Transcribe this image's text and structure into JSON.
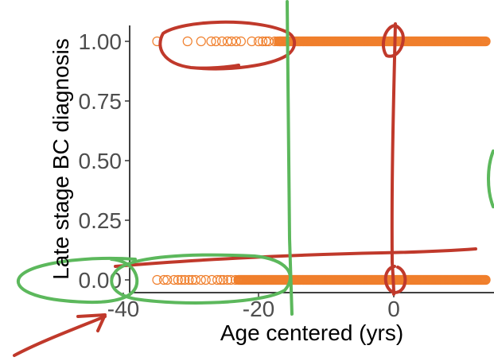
{
  "chart_data": {
    "type": "scatter",
    "title": "",
    "xlabel": "Age centered (yrs)",
    "ylabel": "Late stage BC diagnosis",
    "xlim": [
      -42,
      14
    ],
    "ylim": [
      -0.05,
      1.05
    ],
    "x_ticks": [
      {
        "value": -40,
        "label": "-40"
      },
      {
        "value": -20,
        "label": "-20"
      },
      {
        "value": 0,
        "label": "0"
      }
    ],
    "y_ticks": [
      {
        "value": 0,
        "label": "0.00"
      },
      {
        "value": 0.25,
        "label": "0.25"
      },
      {
        "value": 0.5,
        "label": "0.50"
      },
      {
        "value": 0.75,
        "label": "0.75"
      },
      {
        "value": 1,
        "label": "1.00"
      }
    ],
    "grid": false,
    "series": [
      {
        "marker": "open-circle",
        "color": "#f07f2c",
        "points_y1": [
          -35,
          -30.5,
          -28.5,
          -27,
          -26.3,
          -25.4,
          -24.6,
          -24,
          -23.3,
          -22.6,
          -21,
          -20,
          -19.4,
          -18.9,
          -18.5,
          -17.6,
          -17.2,
          -16.8
        ],
        "points_y0": [
          -41,
          -35,
          -34,
          -33.5,
          -32.5,
          -31.9,
          -31.4,
          -30.9,
          -30.3,
          -29.8,
          -29.3,
          -28.5,
          -27.8,
          -26.9,
          -26.1,
          -25.6,
          -25.2,
          -24.6,
          -24.1,
          -23.4
        ],
        "dense_range_y1": [
          -17,
          14
        ],
        "dense_range_y0": [
          -23,
          14
        ]
      }
    ],
    "annotations": {
      "vertical_line_green_x": -17.5,
      "vertical_line_red_x": 0,
      "colors": {
        "red": "#c0392b",
        "green": "#5cb85c"
      }
    }
  }
}
